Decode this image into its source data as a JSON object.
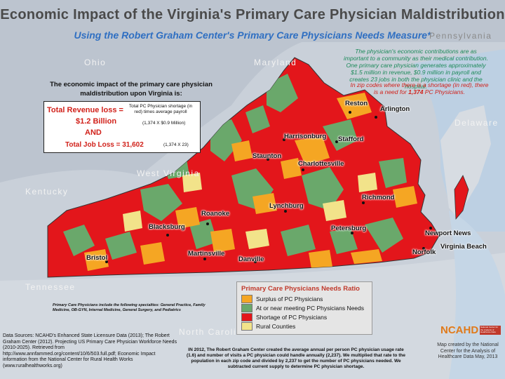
{
  "header": {
    "title": "Economic Impact of the Virginia's Primary Care Physician Maldistribution",
    "subtitle": "Using the Robert Graham Center's Primary Care Physicians Needs Measure*"
  },
  "regions": {
    "ohio": "Ohio",
    "maryland": "Maryland",
    "pennsylvania": "Pennsylvania",
    "delaware": "Delaware",
    "west_virginia": "West Virginia",
    "kentucky": "Kentucky",
    "tennessee": "Tennessee",
    "north_carolina": "North Carolina"
  },
  "notes": {
    "contribution": "The physician's economic contributions are as important to a community as their medical contribution.  One primary care physician generates approximately $1.5 million in revenue, $0.9 million in payroll and creates 23 jobs in both the physician clinic and the hospital.",
    "shortage_prefix": "In zip codes where there is a shortage (in red), there is a need for ",
    "shortage_count": "1,374",
    "shortage_suffix": " PC Physicians."
  },
  "impact": {
    "heading": "The economic impact of the primary care physician maldistribution upon Virginia is:",
    "revenue_label": "Total Revenue loss =",
    "revenue_value": "$1.2 Billion",
    "and_label": "AND",
    "job_loss_label": "Total Job Loss = 31,602",
    "revenue_explain": "Total PC Physician shortage (in red) times average payroll",
    "revenue_formula": "(1,374 X $0.9 Million)",
    "job_formula": "(1,374 X 23)"
  },
  "cities": {
    "reston": "Reston",
    "arlington": "Arlington",
    "stafford": "Stafford",
    "harrisonburg": "Harrisonburg",
    "staunton": "Staunton",
    "charlottesville": "Charlottesville",
    "richmond": "Richmond",
    "lynchburg": "Lynchburg",
    "roanoke": "Roanoke",
    "blacksburg": "Blacksburg",
    "petersburg": "Petersburg",
    "newport_news": "Newport News",
    "virginia_beach": "Virginia Beach",
    "norfolk": "Norfolk",
    "martinsville": "Martinsville",
    "danville": "Danville",
    "bristol": "Bristol"
  },
  "legend": {
    "title": "Primary Care Physicians Needs Ratio",
    "items": [
      {
        "label": "Surplus of PC Physicians",
        "color": "#f5a623"
      },
      {
        "label": "At or near meeting PC Physicians Needs",
        "color": "#6aa86b"
      },
      {
        "label": "Shortage of PC Physicians",
        "color": "#e3161b"
      },
      {
        "label": "Rural Counties",
        "color": "#f2e38a"
      }
    ]
  },
  "footer": {
    "specialties": "Primary Care Physicians include the following specialties: General Practice, Family Medicine, OB-GYN, Internal Medicine, General Surgery, and Pediatrics",
    "sources": "Data Sources: NCAHD's Enhanced State Licensure Data (2013); The Robert Graham Center (2012). Projecting US Primary Care Physician Workforce Needs (2010-2025). Retrieved from http://www.annfammed.org/content/10/6/503.full.pdf; Economic Impact information from the National Center for Rural Health Works (www.ruralhealthworks.org)",
    "method": "IN 2012, The Robert Graham Center created the average annual per person PC physician usage rate (1.6) and number of visits a PC physician could handle annually (2,237). We multiplied that rate to the population in each zip code and divided by 2,237 to get the number of PC physicians needed. We subtracted current supply to determine PC physician shortage.",
    "logo_text": "NCAHD",
    "logo_sub": "National Center for the Analysis of Healthcare Data",
    "credit": "Map created by the National Center for the Analysis of Healthcare Data May, 2013"
  }
}
